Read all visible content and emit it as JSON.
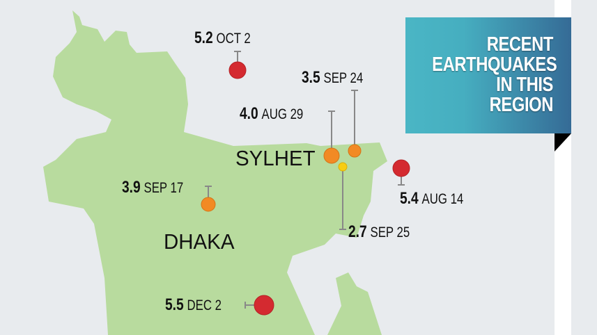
{
  "title": {
    "lines": [
      "RECENT",
      "EARTHQUAKES",
      "IN THIS",
      "REGION"
    ]
  },
  "colors": {
    "land": "#b8db9e",
    "water": "#e8ebee",
    "high_magnitude": "#d42a30",
    "medium_magnitude": "#f28a24",
    "low_magnitude": "#f7cd12",
    "title_gradient_start": "#4ab6c5",
    "title_gradient_end": "#356b96"
  },
  "cities": [
    "SYLHET",
    "DHAKA"
  ],
  "earthquakes": [
    {
      "magnitude": "5.2",
      "date": "OCT 2",
      "color": "#d42a30"
    },
    {
      "magnitude": "3.5",
      "date": "SEP 24",
      "color": "#f28a24"
    },
    {
      "magnitude": "4.0",
      "date": "AUG 29",
      "color": "#f28a24"
    },
    {
      "magnitude": "5.4",
      "date": "AUG 14",
      "color": "#d42a30"
    },
    {
      "magnitude": "3.9",
      "date": "SEP 17",
      "color": "#f28a24"
    },
    {
      "magnitude": "2.7",
      "date": "SEP 25",
      "color": "#f7cd12"
    },
    {
      "magnitude": "5.5",
      "date": "DEC 2",
      "color": "#d42a30"
    }
  ]
}
